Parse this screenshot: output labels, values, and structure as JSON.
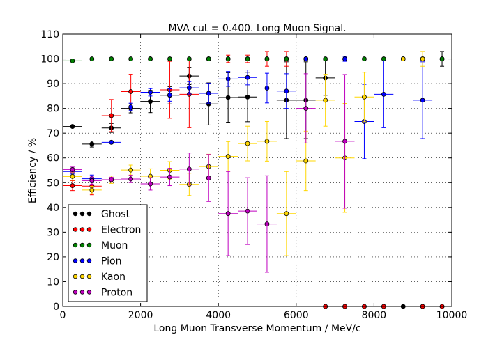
{
  "chart_data": {
    "type": "scatter",
    "title": "MVA cut = 0.400. Long Muon Signal.",
    "xlabel": "Long Muon Transverse Momentum / MeV/c",
    "ylabel": "Efficiency / %",
    "xlim": [
      0,
      10000
    ],
    "ylim": [
      0,
      110
    ],
    "xticks": [
      "0",
      "2000",
      "4000",
      "6000",
      "8000",
      "10000"
    ],
    "yticks": [
      "0",
      "10",
      "20",
      "30",
      "40",
      "50",
      "60",
      "70",
      "80",
      "90",
      "100",
      "110"
    ],
    "grid": true,
    "legend_position": "bottom-left",
    "x_bin_half_width": 250,
    "series": [
      {
        "name": "Ghost",
        "color": "#000000",
        "points": [
          {
            "x": 250,
            "y": 72.7,
            "err": 0
          },
          {
            "x": 750,
            "y": 65.6,
            "err": 1.2
          },
          {
            "x": 1250,
            "y": 72.1,
            "err": 1.8
          },
          {
            "x": 1750,
            "y": 80.0,
            "err": 1.8
          },
          {
            "x": 2250,
            "y": 82.8,
            "err": 4.5
          },
          {
            "x": 2750,
            "y": 85.3,
            "err": 3.5
          },
          {
            "x": 3250,
            "y": 93.1,
            "err": 3.5
          },
          {
            "x": 3750,
            "y": 81.8,
            "err": 8.5
          },
          {
            "x": 4250,
            "y": 84.4,
            "err": 10.0
          },
          {
            "x": 4750,
            "y": 84.6,
            "err": 10.0
          },
          {
            "x": 5750,
            "y": 83.3,
            "err": 15.5
          },
          {
            "x": 6250,
            "y": 83.3,
            "err": 15.5
          },
          {
            "x": 6750,
            "y": 92.3,
            "err": 7.0
          },
          {
            "x": 9750,
            "y": 100.0,
            "err": 3.0
          },
          {
            "x": 6750,
            "y": 0,
            "err": 0
          },
          {
            "x": 7250,
            "y": 0,
            "err": 0
          },
          {
            "x": 7750,
            "y": 0,
            "err": 0
          },
          {
            "x": 8250,
            "y": 0,
            "err": 0
          },
          {
            "x": 8750,
            "y": 0,
            "err": 0
          },
          {
            "x": 9250,
            "y": 0,
            "err": 0
          },
          {
            "x": 9750,
            "y": 0,
            "err": 0
          }
        ]
      },
      {
        "name": "Electron",
        "color": "#ff0000",
        "points": [
          {
            "x": 250,
            "y": 48.8,
            "err": 2.0
          },
          {
            "x": 750,
            "y": 48.6,
            "err": 3.5
          },
          {
            "x": 1250,
            "y": 77.1,
            "err": 6.5
          },
          {
            "x": 1750,
            "y": 86.8,
            "err": 7.0
          },
          {
            "x": 2250,
            "y": 100.0,
            "err": 0
          },
          {
            "x": 2750,
            "y": 87.5,
            "err": 11.5
          },
          {
            "x": 3250,
            "y": 85.7,
            "err": 13.5
          },
          {
            "x": 3750,
            "y": 100.0,
            "err": 0
          },
          {
            "x": 4250,
            "y": 100.0,
            "err": 1.5
          },
          {
            "x": 4750,
            "y": 100.0,
            "err": 1.5
          },
          {
            "x": 5250,
            "y": 100.0,
            "err": 3.0
          },
          {
            "x": 5750,
            "y": 100.0,
            "err": 3.0
          },
          {
            "x": 6250,
            "y": 100.0,
            "err": 0
          },
          {
            "x": 6750,
            "y": 0,
            "err": 0
          },
          {
            "x": 7250,
            "y": 0,
            "err": 0
          },
          {
            "x": 7750,
            "y": 0,
            "err": 0
          },
          {
            "x": 8250,
            "y": 0,
            "err": 0
          },
          {
            "x": 9250,
            "y": 0,
            "err": 0
          },
          {
            "x": 9750,
            "y": 0,
            "err": 0
          }
        ]
      },
      {
        "name": "Muon",
        "color": "#008000",
        "points": [
          {
            "x": 250,
            "y": 99.2,
            "err": 0.3
          },
          {
            "x": 750,
            "y": 100.0,
            "err": 0
          },
          {
            "x": 1250,
            "y": 100.0,
            "err": 0
          },
          {
            "x": 1750,
            "y": 100.0,
            "err": 0
          },
          {
            "x": 2250,
            "y": 100.0,
            "err": 0
          },
          {
            "x": 2750,
            "y": 100.0,
            "err": 0
          },
          {
            "x": 3250,
            "y": 100.0,
            "err": 0
          },
          {
            "x": 3750,
            "y": 100.0,
            "err": 0
          },
          {
            "x": 4250,
            "y": 100.0,
            "err": 0
          },
          {
            "x": 4750,
            "y": 100.0,
            "err": 0
          },
          {
            "x": 5250,
            "y": 100.0,
            "err": 0
          },
          {
            "x": 5750,
            "y": 100.0,
            "err": 0
          },
          {
            "x": 6250,
            "y": 100.0,
            "err": 0
          },
          {
            "x": 6750,
            "y": 100.0,
            "err": 0
          },
          {
            "x": 7250,
            "y": 100.0,
            "err": 0
          },
          {
            "x": 7750,
            "y": 100.0,
            "err": 0
          },
          {
            "x": 8250,
            "y": 100.0,
            "err": 0
          },
          {
            "x": 8750,
            "y": 100.0,
            "err": 0
          },
          {
            "x": 9250,
            "y": 100.0,
            "err": 0
          },
          {
            "x": 9750,
            "y": 100.0,
            "err": 0
          }
        ]
      },
      {
        "name": "Pion",
        "color": "#0000ff",
        "points": [
          {
            "x": 250,
            "y": 54.5,
            "err": 1.0
          },
          {
            "x": 750,
            "y": 51.6,
            "err": 1.5
          },
          {
            "x": 1250,
            "y": 66.3,
            "err": 0.5
          },
          {
            "x": 1750,
            "y": 80.6,
            "err": 1.5
          },
          {
            "x": 2250,
            "y": 86.5,
            "err": 1.5
          },
          {
            "x": 2750,
            "y": 85.4,
            "err": 2.5
          },
          {
            "x": 3250,
            "y": 88.3,
            "err": 2.5
          },
          {
            "x": 3750,
            "y": 86.1,
            "err": 4.0
          },
          {
            "x": 4250,
            "y": 91.9,
            "err": 3.0
          },
          {
            "x": 4750,
            "y": 92.5,
            "err": 3.0
          },
          {
            "x": 5250,
            "y": 88.2,
            "err": 6.0
          },
          {
            "x": 5750,
            "y": 87.0,
            "err": 7.0
          },
          {
            "x": 6250,
            "y": 100.0,
            "err": 0
          },
          {
            "x": 7250,
            "y": 100.0,
            "err": 1.0
          },
          {
            "x": 7750,
            "y": 74.7,
            "err": 15.0
          },
          {
            "x": 8250,
            "y": 85.7,
            "err": 13.5
          },
          {
            "x": 9250,
            "y": 83.3,
            "err": 15.5
          }
        ]
      },
      {
        "name": "Kaon",
        "color": "#ffd700",
        "points": [
          {
            "x": 250,
            "y": 52.5,
            "err": 1.5
          },
          {
            "x": 750,
            "y": 47.0,
            "err": 1.5
          },
          {
            "x": 1250,
            "y": 51.2,
            "err": 1.5
          },
          {
            "x": 1750,
            "y": 55.1,
            "err": 2.0
          },
          {
            "x": 2250,
            "y": 52.6,
            "err": 3.0
          },
          {
            "x": 2750,
            "y": 55.0,
            "err": 3.5
          },
          {
            "x": 3250,
            "y": 49.3,
            "err": 4.5
          },
          {
            "x": 3750,
            "y": 56.5,
            "err": 5.0
          },
          {
            "x": 4250,
            "y": 60.6,
            "err": 6.0
          },
          {
            "x": 4750,
            "y": 65.8,
            "err": 7.0
          },
          {
            "x": 5250,
            "y": 66.7,
            "err": 8.0
          },
          {
            "x": 5750,
            "y": 37.5,
            "err": 17.0
          },
          {
            "x": 6250,
            "y": 58.8,
            "err": 12.0
          },
          {
            "x": 6750,
            "y": 83.3,
            "err": 10.5
          },
          {
            "x": 7250,
            "y": 60.0,
            "err": 22.0
          },
          {
            "x": 7750,
            "y": 84.6,
            "err": 10.0
          },
          {
            "x": 8750,
            "y": 100.0,
            "err": 0
          },
          {
            "x": 9250,
            "y": 100.0,
            "err": 3.0
          }
        ]
      },
      {
        "name": "Proton",
        "color": "#bf00bf",
        "points": [
          {
            "x": 250,
            "y": 55.3,
            "err": 1.0
          },
          {
            "x": 750,
            "y": 50.8,
            "err": 1.5
          },
          {
            "x": 1250,
            "y": 51.2,
            "err": 1.0
          },
          {
            "x": 1750,
            "y": 51.5,
            "err": 1.5
          },
          {
            "x": 2250,
            "y": 49.5,
            "err": 2.5
          },
          {
            "x": 2750,
            "y": 52.3,
            "err": 3.5
          },
          {
            "x": 3250,
            "y": 55.5,
            "err": 6.5
          },
          {
            "x": 3750,
            "y": 51.9,
            "err": 9.5
          },
          {
            "x": 4250,
            "y": 37.5,
            "err": 17.0
          },
          {
            "x": 4750,
            "y": 38.5,
            "err": 13.5
          },
          {
            "x": 5250,
            "y": 33.3,
            "err": 19.5
          },
          {
            "x": 6250,
            "y": 80.0,
            "err": 14.0
          },
          {
            "x": 7250,
            "y": 66.7,
            "err": 27.0
          }
        ]
      }
    ]
  }
}
